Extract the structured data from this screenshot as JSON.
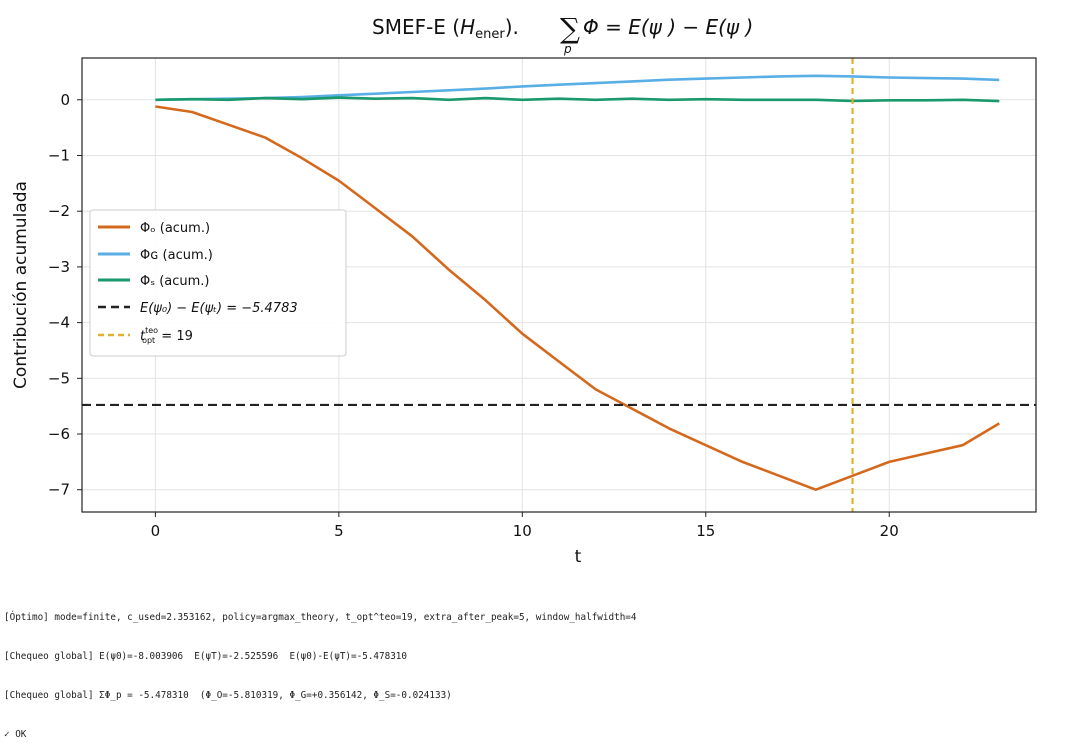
{
  "chart_data": {
    "type": "line",
    "title_prefix": "SMEF-E (",
    "title_h": "H",
    "title_h_sub": "ener",
    "title_suffix": ").",
    "title_sum": "∑",
    "title_sum_sub": "p",
    "title_formula": "Φ  = E(ψ ) − E(ψ )",
    "xlabel": "t",
    "ylabel": "Contribución acumulada",
    "xlim": [
      -2,
      24
    ],
    "ylim": [
      -7.4,
      0.75
    ],
    "xticks": [
      0,
      5,
      10,
      15,
      20
    ],
    "yticks": [
      0,
      -1,
      -2,
      -3,
      -4,
      -5,
      -6,
      -7
    ],
    "ytick_labels": [
      "0",
      "−1",
      "−2",
      "−3",
      "−4",
      "−5",
      "−6",
      "−7"
    ],
    "grid": true,
    "legend_position": "center-left",
    "x": [
      0,
      1,
      2,
      3,
      4,
      5,
      6,
      7,
      8,
      9,
      10,
      11,
      12,
      13,
      14,
      15,
      16,
      17,
      18,
      19,
      20,
      21,
      22,
      23
    ],
    "series": [
      {
        "name": "Φ_O (acum.)",
        "legend": "Φₒ (acum.)",
        "color": "#d4691e",
        "values": [
          -0.12,
          -0.22,
          -0.45,
          -0.68,
          -1.05,
          -1.45,
          -1.95,
          -2.45,
          -3.05,
          -3.6,
          -4.2,
          -4.7,
          -5.2,
          -5.55,
          -5.9,
          -6.2,
          -6.5,
          -6.75,
          -7.0,
          -6.75,
          -6.5,
          -6.35,
          -6.2,
          -5.81
        ]
      },
      {
        "name": "Φ_G (acum.)",
        "legend": "Φɢ (acum.)",
        "color": "#5aaee6",
        "values": [
          0.0,
          0.01,
          0.02,
          0.03,
          0.05,
          0.08,
          0.11,
          0.14,
          0.17,
          0.2,
          0.24,
          0.27,
          0.3,
          0.33,
          0.36,
          0.38,
          0.4,
          0.42,
          0.43,
          0.42,
          0.4,
          0.39,
          0.38,
          0.356
        ]
      },
      {
        "name": "Φ_S (acum.)",
        "legend": "Φₛ (acum.)",
        "color": "#1a9a6c",
        "values": [
          0.0,
          0.01,
          0.0,
          0.03,
          0.01,
          0.04,
          0.02,
          0.03,
          0.0,
          0.03,
          0.0,
          0.02,
          0.0,
          0.02,
          0.0,
          0.01,
          0.0,
          0.0,
          0.0,
          -0.02,
          -0.01,
          -0.01,
          0.0,
          -0.024
        ]
      }
    ],
    "hline": {
      "value": -5.4783,
      "color": "#222222",
      "legend": "E(ψ₀) − E(ψₜ) = −5.4783"
    },
    "vline": {
      "value": 19,
      "color": "#e0b030",
      "legend": "t = 19",
      "legend_sup": "teo",
      "legend_sub": "opt"
    }
  },
  "console_lines": [
    "[Óptimo] mode=finite, c_used=2.353162, policy=argmax_theory, t_opt^teo=19, extra_after_peak=5, window_halfwidth=4",
    "[Chequeo global] E(ψ0)=-8.003906  E(ψT)=-2.525596  E(ψ0)-E(ψT)=-5.478310",
    "[Chequeo global] ΣΦ_p = -5.478310  (Φ_O=-5.810319, Φ_G=+0.356142, Φ_S=-0.024133)",
    "✓ OK"
  ]
}
